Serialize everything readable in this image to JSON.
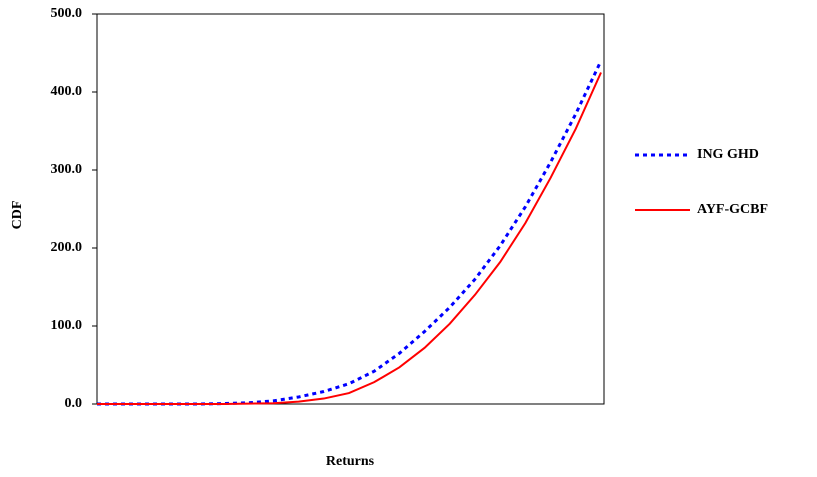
{
  "chart_data": {
    "type": "line",
    "x_label": "Returns",
    "y_label": "CDF",
    "categories": [
      null,
      null,
      null,
      null,
      null,
      null,
      null,
      null,
      null,
      null,
      null,
      null,
      null,
      null,
      null,
      null,
      null,
      null,
      null,
      null,
      null
    ],
    "series": [
      {
        "name": "ING GHD",
        "color": "#0000ff",
        "dash": true,
        "values": [
          0,
          0,
          0,
          0,
          0,
          0.5,
          1.5,
          4,
          9,
          16,
          26,
          42,
          65,
          93,
          124,
          160,
          203,
          253,
          310,
          372,
          440
        ]
      },
      {
        "name": "AYF-GCBF",
        "color": "#ff0000",
        "dash": false,
        "values": [
          0,
          0,
          0,
          0,
          0,
          0,
          0.5,
          1,
          3,
          7,
          14,
          28,
          47,
          72,
          103,
          140,
          182,
          232,
          290,
          353,
          425
        ]
      }
    ],
    "ylim": [
      0,
      500
    ],
    "yticks": [
      {
        "value": 0,
        "label": "0.0"
      },
      {
        "value": 100,
        "label": "100.0"
      },
      {
        "value": 200,
        "label": "200.0"
      },
      {
        "value": 300,
        "label": "300.0"
      },
      {
        "value": 400,
        "label": "400.0"
      },
      {
        "value": 500,
        "label": "500.0"
      }
    ],
    "grid": false
  }
}
